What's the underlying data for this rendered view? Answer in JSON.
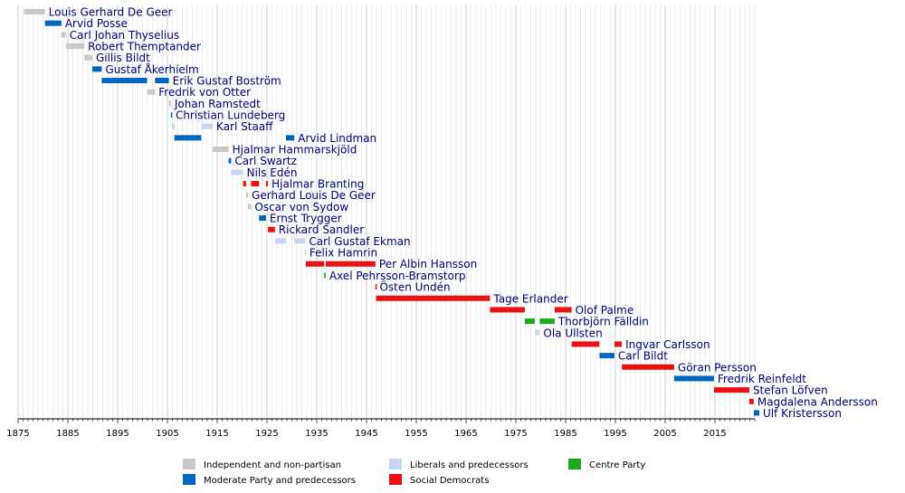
{
  "chart_data": {
    "type": "timeline",
    "title": "",
    "xlabel": "",
    "ylabel": "",
    "xlim": [
      1875,
      2023
    ],
    "x_ticks": [
      "1875",
      "1885",
      "1895",
      "1905",
      "1915",
      "1925",
      "1935",
      "1945",
      "1955",
      "1965",
      "1975",
      "1985",
      "1995",
      "2005",
      "2015"
    ],
    "grid": true,
    "legend_position": "bottom",
    "parties": {
      "ind": {
        "label": "Independent and non-partisan",
        "color": "#c8c8c8"
      },
      "lib": {
        "label": "Liberals and predecessors",
        "color": "#c6d6f3"
      },
      "cen": {
        "label": "Centre Party",
        "color": "#1aaa1a"
      },
      "mod": {
        "label": "Moderate Party and predecessors",
        "color": "#0066c0"
      },
      "soc": {
        "label": "Social Democrats",
        "color": "#ee1111"
      }
    },
    "legend_order": [
      "ind",
      "lib",
      "cen",
      "mod",
      "soc"
    ],
    "rows": [
      {
        "name": "Louis Gerhard De Geer",
        "terms": [
          {
            "party": "ind",
            "start": 1876.2,
            "end": 1880.4
          }
        ]
      },
      {
        "name": "Arvid Posse",
        "terms": [
          {
            "party": "mod",
            "start": 1880.4,
            "end": 1883.7
          }
        ]
      },
      {
        "name": "Carl Johan Thyselius",
        "terms": [
          {
            "party": "ind",
            "start": 1883.7,
            "end": 1884.6
          }
        ]
      },
      {
        "name": "Robert Themptander",
        "terms": [
          {
            "party": "ind",
            "start": 1884.6,
            "end": 1888.3
          }
        ]
      },
      {
        "name": "Gillis Bildt",
        "terms": [
          {
            "party": "ind",
            "start": 1888.3,
            "end": 1889.9
          }
        ]
      },
      {
        "name": "Gustaf Åkerhielm",
        "terms": [
          {
            "party": "mod",
            "start": 1889.9,
            "end": 1891.8
          }
        ]
      },
      {
        "name": "Erik Gustaf Boström",
        "terms": [
          {
            "party": "mod",
            "start": 1891.8,
            "end": 1900.9
          },
          {
            "party": "mod",
            "start": 1902.5,
            "end": 1905.3
          }
        ]
      },
      {
        "name": "Fredrik von Otter",
        "terms": [
          {
            "party": "ind",
            "start": 1900.9,
            "end": 1902.5
          }
        ]
      },
      {
        "name": "Johan Ramstedt",
        "terms": [
          {
            "party": "ind",
            "start": 1905.3,
            "end": 1905.7
          }
        ]
      },
      {
        "name": "Christian Lundeberg",
        "terms": [
          {
            "party": "mod",
            "start": 1905.7,
            "end": 1905.9
          }
        ]
      },
      {
        "name": "Karl Staaff",
        "terms": [
          {
            "party": "lib",
            "start": 1905.9,
            "end": 1906.4
          },
          {
            "party": "lib",
            "start": 1911.8,
            "end": 1914.1
          }
        ]
      },
      {
        "name": "Arvid Lindman",
        "terms": [
          {
            "party": "mod",
            "start": 1906.4,
            "end": 1911.8
          },
          {
            "party": "mod",
            "start": 1928.8,
            "end": 1930.5
          }
        ]
      },
      {
        "name": "Hjalmar Hammarskjöld",
        "terms": [
          {
            "party": "ind",
            "start": 1914.1,
            "end": 1917.3
          }
        ]
      },
      {
        "name": "Carl Swartz",
        "terms": [
          {
            "party": "mod",
            "start": 1917.3,
            "end": 1917.8
          }
        ]
      },
      {
        "name": "Nils Edén",
        "terms": [
          {
            "party": "lib",
            "start": 1917.8,
            "end": 1920.2
          }
        ]
      },
      {
        "name": "Hjalmar Branting",
        "terms": [
          {
            "party": "soc",
            "start": 1920.2,
            "end": 1920.8
          },
          {
            "party": "soc",
            "start": 1921.8,
            "end": 1923.4
          },
          {
            "party": "soc",
            "start": 1924.8,
            "end": 1925.2
          }
        ]
      },
      {
        "name": "Gerhard Louis De Geer",
        "terms": [
          {
            "party": "ind",
            "start": 1920.8,
            "end": 1921.2
          }
        ]
      },
      {
        "name": "Oscar von Sydow",
        "terms": [
          {
            "party": "ind",
            "start": 1921.2,
            "end": 1921.8
          }
        ]
      },
      {
        "name": "Ernst Trygger",
        "terms": [
          {
            "party": "mod",
            "start": 1923.4,
            "end": 1924.8
          }
        ]
      },
      {
        "name": "Rickard Sandler",
        "terms": [
          {
            "party": "soc",
            "start": 1925.2,
            "end": 1926.6
          }
        ]
      },
      {
        "name": "Carl Gustaf Ekman",
        "terms": [
          {
            "party": "lib",
            "start": 1926.6,
            "end": 1928.8
          },
          {
            "party": "lib",
            "start": 1930.5,
            "end": 1932.7
          }
        ]
      },
      {
        "name": "Felix Hamrin",
        "terms": [
          {
            "party": "lib",
            "start": 1932.6,
            "end": 1932.8
          }
        ]
      },
      {
        "name": "Per Albin Hansson",
        "terms": [
          {
            "party": "soc",
            "start": 1932.8,
            "end": 1936.5
          },
          {
            "party": "soc",
            "start": 1936.8,
            "end": 1946.8
          }
        ]
      },
      {
        "name": "Axel Pehrsson-Bramstorp",
        "terms": [
          {
            "party": "cen",
            "start": 1936.5,
            "end": 1936.8
          }
        ]
      },
      {
        "name": "Östen Undén",
        "terms": [
          {
            "party": "soc",
            "start": 1946.8,
            "end": 1946.9
          }
        ]
      },
      {
        "name": "Tage Erlander",
        "terms": [
          {
            "party": "soc",
            "start": 1946.9,
            "end": 1969.8
          }
        ]
      },
      {
        "name": "Olof Palme",
        "terms": [
          {
            "party": "soc",
            "start": 1969.8,
            "end": 1976.8
          },
          {
            "party": "soc",
            "start": 1982.8,
            "end": 1986.2
          }
        ]
      },
      {
        "name": "Thorbjörn Fälldin",
        "terms": [
          {
            "party": "cen",
            "start": 1976.8,
            "end": 1978.8
          },
          {
            "party": "cen",
            "start": 1979.8,
            "end": 1982.8
          }
        ]
      },
      {
        "name": "Ola Ullsten",
        "terms": [
          {
            "party": "lib",
            "start": 1978.8,
            "end": 1979.8
          }
        ]
      },
      {
        "name": "Ingvar Carlsson",
        "terms": [
          {
            "party": "soc",
            "start": 1986.2,
            "end": 1991.8
          },
          {
            "party": "soc",
            "start": 1994.8,
            "end": 1996.3
          }
        ]
      },
      {
        "name": "Carl Bildt",
        "terms": [
          {
            "party": "mod",
            "start": 1991.8,
            "end": 1994.8
          }
        ]
      },
      {
        "name": "Göran Persson",
        "terms": [
          {
            "party": "soc",
            "start": 1996.3,
            "end": 2006.8
          }
        ]
      },
      {
        "name": "Fredrik Reinfeldt",
        "terms": [
          {
            "party": "mod",
            "start": 2006.8,
            "end": 2014.8
          }
        ]
      },
      {
        "name": "Stefan Löfven",
        "terms": [
          {
            "party": "soc",
            "start": 2014.8,
            "end": 2021.9
          }
        ]
      },
      {
        "name": "Magdalena Andersson",
        "terms": [
          {
            "party": "soc",
            "start": 2021.9,
            "end": 2022.8
          }
        ]
      },
      {
        "name": "Ulf Kristersson",
        "terms": [
          {
            "party": "mod",
            "start": 2022.8,
            "end": 2023.9
          }
        ]
      }
    ]
  }
}
